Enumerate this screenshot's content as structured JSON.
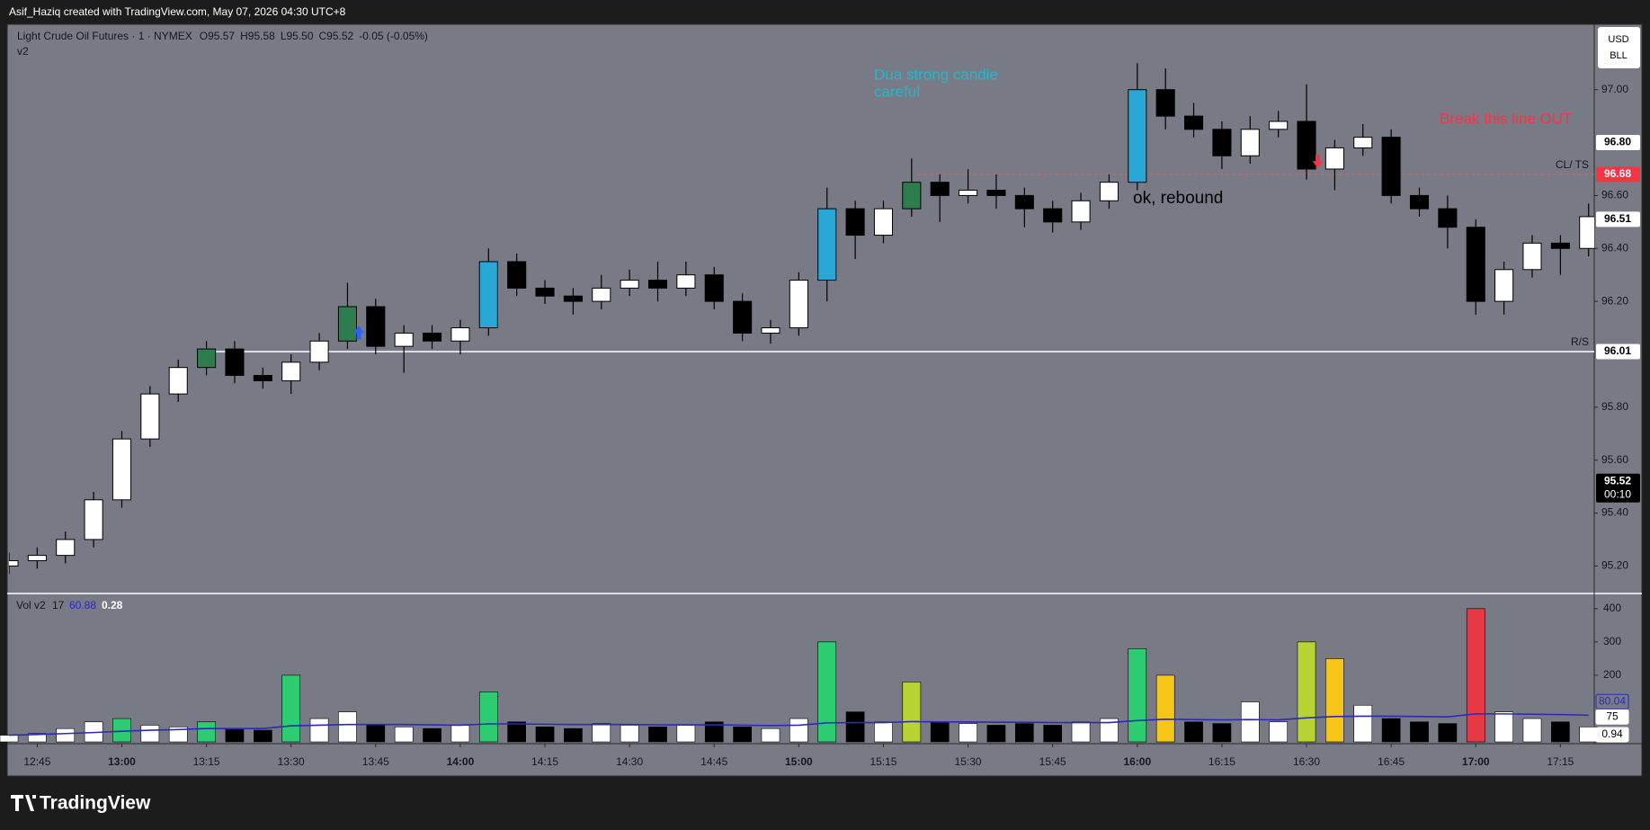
{
  "watermark": "Asif_Haziq created with TradingView.com, May 07, 2026 04:30 UTC+8",
  "brand": "TradingView",
  "currency": [
    "USD",
    "BLL"
  ],
  "chart_data": {
    "type": "candlestick",
    "title": "Light Crude Oil Futures · 1 · NYMEX",
    "ohlc_legend": [
      "O95.57",
      "H95.58",
      "L95.50",
      "C95.52",
      "-0.05 (-0.05%)"
    ],
    "subtitle": "v2",
    "x": [
      "12:40",
      "12:45",
      "12:50",
      "12:55",
      "13:00",
      "13:05",
      "13:10",
      "13:15",
      "13:20",
      "13:25",
      "13:30",
      "13:35",
      "13:40",
      "13:45",
      "13:50",
      "13:55",
      "14:00",
      "14:05",
      "14:10",
      "14:15",
      "14:20",
      "14:25",
      "14:30",
      "14:35",
      "14:40",
      "14:45",
      "14:50",
      "14:55",
      "15:00",
      "15:05",
      "15:10",
      "15:15",
      "15:20",
      "15:25",
      "15:30",
      "15:35",
      "15:40",
      "15:45",
      "15:50",
      "15:55",
      "16:00",
      "16:05",
      "16:10",
      "16:15",
      "16:20",
      "16:25",
      "16:30",
      "16:35",
      "16:40",
      "16:45",
      "16:50",
      "16:55",
      "17:00",
      "17:05",
      "17:10",
      "17:15",
      "17:20"
    ],
    "open": [
      95.2,
      95.22,
      95.24,
      95.3,
      95.45,
      95.68,
      95.85,
      95.95,
      96.02,
      95.92,
      95.9,
      95.97,
      96.05,
      96.18,
      96.03,
      96.08,
      96.05,
      96.1,
      96.35,
      96.25,
      96.22,
      96.2,
      96.25,
      96.28,
      96.25,
      96.3,
      96.2,
      96.08,
      96.1,
      96.28,
      96.55,
      96.45,
      96.55,
      96.65,
      96.6,
      96.62,
      96.6,
      96.55,
      96.5,
      96.58,
      96.65,
      97.0,
      96.9,
      96.85,
      96.75,
      96.85,
      96.88,
      96.7,
      96.78,
      96.82,
      96.6,
      96.55,
      96.48,
      96.2,
      96.32,
      96.42,
      96.4
    ],
    "high": [
      95.25,
      95.27,
      95.33,
      95.48,
      95.71,
      95.88,
      95.98,
      96.05,
      96.05,
      95.95,
      96.0,
      96.08,
      96.27,
      96.21,
      96.11,
      96.11,
      96.13,
      96.4,
      96.38,
      96.28,
      96.25,
      96.3,
      96.32,
      96.35,
      96.35,
      96.33,
      96.23,
      96.13,
      96.31,
      96.63,
      96.58,
      96.58,
      96.74,
      96.68,
      96.7,
      96.68,
      96.63,
      96.58,
      96.61,
      96.68,
      97.1,
      97.08,
      96.95,
      96.88,
      96.9,
      96.92,
      97.02,
      96.81,
      96.87,
      96.85,
      96.63,
      96.6,
      96.51,
      96.35,
      96.45,
      96.45,
      96.57
    ],
    "low": [
      95.17,
      95.19,
      95.21,
      95.27,
      95.42,
      95.65,
      95.82,
      95.92,
      95.89,
      95.87,
      95.85,
      95.94,
      96.02,
      96.0,
      95.93,
      96.02,
      96.0,
      96.07,
      96.22,
      96.19,
      96.15,
      96.17,
      96.22,
      96.2,
      96.22,
      96.17,
      96.05,
      96.04,
      96.07,
      96.2,
      96.36,
      96.42,
      96.52,
      96.5,
      96.57,
      96.55,
      96.48,
      96.46,
      96.47,
      96.55,
      96.62,
      96.85,
      96.82,
      96.7,
      96.72,
      96.82,
      96.66,
      96.62,
      96.75,
      96.57,
      96.52,
      96.4,
      96.15,
      96.15,
      96.29,
      96.3,
      96.37
    ],
    "close": [
      95.22,
      95.24,
      95.3,
      95.45,
      95.68,
      95.85,
      95.95,
      96.02,
      95.92,
      95.9,
      95.97,
      96.05,
      96.18,
      96.03,
      96.08,
      96.05,
      96.1,
      96.35,
      96.25,
      96.22,
      96.2,
      96.25,
      96.28,
      96.25,
      96.3,
      96.2,
      96.08,
      96.1,
      96.28,
      96.55,
      96.45,
      96.55,
      96.65,
      96.6,
      96.62,
      96.6,
      96.55,
      96.5,
      96.58,
      96.65,
      97.0,
      96.9,
      96.85,
      96.75,
      96.85,
      96.88,
      96.7,
      96.78,
      96.82,
      96.6,
      96.55,
      96.48,
      96.2,
      96.32,
      96.42,
      96.4,
      96.52
    ],
    "candle_colors": [
      "#ffffff",
      "#ffffff",
      "#ffffff",
      "#ffffff",
      "#ffffff",
      "#ffffff",
      "#ffffff",
      "#2e7d4f",
      "#000000",
      "#000000",
      "#ffffff",
      "#ffffff",
      "#2e7d4f",
      "#000000",
      "#ffffff",
      "#000000",
      "#ffffff",
      "#29a8d8",
      "#000000",
      "#000000",
      "#000000",
      "#ffffff",
      "#ffffff",
      "#000000",
      "#ffffff",
      "#000000",
      "#000000",
      "#ffffff",
      "#ffffff",
      "#29a8d8",
      "#000000",
      "#ffffff",
      "#2e7d4f",
      "#000000",
      "#ffffff",
      "#000000",
      "#000000",
      "#000000",
      "#ffffff",
      "#ffffff",
      "#29a8d8",
      "#000000",
      "#000000",
      "#000000",
      "#ffffff",
      "#ffffff",
      "#000000",
      "#ffffff",
      "#ffffff",
      "#000000",
      "#000000",
      "#000000",
      "#000000",
      "#ffffff",
      "#ffffff",
      "#000000",
      "#ffffff"
    ],
    "xlim": [
      "12:40",
      "17:21"
    ],
    "xticks": [
      "12:45",
      "13:00",
      "13:15",
      "13:30",
      "13:45",
      "14:00",
      "14:15",
      "14:30",
      "14:45",
      "15:00",
      "15:15",
      "15:30",
      "15:45",
      "16:00",
      "16:15",
      "16:30",
      "16:45",
      "17:00",
      "17:15"
    ],
    "ylim": [
      95.096,
      97.247
    ],
    "yticks": [
      {
        "value": 95.2,
        "label": "95.20"
      },
      {
        "value": 95.4,
        "label": "95.40"
      },
      {
        "value": 95.6,
        "label": "95.60"
      },
      {
        "value": 95.8,
        "label": "95.80"
      },
      {
        "value": 96.2,
        "label": "96.20"
      },
      {
        "value": 96.4,
        "label": "96.40"
      },
      {
        "value": 96.6,
        "label": "96.60"
      },
      {
        "value": 97,
        "label": "97.00"
      }
    ],
    "price_labels": [
      {
        "value": 96.8,
        "label": "96.80",
        "color": "#ffffff"
      },
      {
        "value": 96.68,
        "color": "#f23645"
      },
      {
        "value": 96.51,
        "color": "#ffffff"
      },
      {
        "value": 96.01,
        "color": "#ffffff"
      },
      {
        "value": 95.52,
        "color": "#000000",
        "countdown": "00:10"
      }
    ],
    "lines": [
      {
        "value": 96.01,
        "label": "R/S",
        "color": "#ffffff",
        "style": "solid",
        "from": "13:14"
      },
      {
        "value": 96.68,
        "label": "CL/ TS",
        "color": "#e06060",
        "style": "dashed",
        "from": "15:21"
      }
    ],
    "markers": [
      {
        "x": "13:42",
        "value": 96.08,
        "direction": "up",
        "color": "#2962ff"
      },
      {
        "x": "16:32",
        "value": 96.73,
        "direction": "down",
        "color": "#f23645"
      }
    ],
    "annotations": [
      {
        "text": "Dua strong candle",
        "color": "#1fb8d0"
      },
      {
        "text": "careful",
        "color": "#1fb8d0"
      },
      {
        "text": "Break this line OUT",
        "color": "#f23645"
      },
      {
        "text": "ok, rebound",
        "color": "#000000"
      }
    ],
    "volume": {
      "title": "Vol v2",
      "length": 17,
      "ma_value": 60.88,
      "last": 0.28,
      "values": [
        20,
        25,
        40,
        60,
        70,
        50,
        45,
        60,
        40,
        35,
        200,
        70,
        90,
        50,
        45,
        40,
        50,
        150,
        60,
        45,
        40,
        55,
        50,
        45,
        50,
        60,
        45,
        40,
        70,
        300,
        90,
        60,
        180,
        60,
        55,
        50,
        55,
        50,
        60,
        70,
        280,
        200,
        60,
        55,
        120,
        60,
        300,
        250,
        110,
        70,
        60,
        55,
        400,
        90,
        70,
        60,
        45
      ],
      "colors": [
        "#ffffff",
        "#ffffff",
        "#ffffff",
        "#ffffff",
        "#2ecc71",
        "#ffffff",
        "#ffffff",
        "#2ecc71",
        "#000000",
        "#000000",
        "#2ecc71",
        "#ffffff",
        "#ffffff",
        "#000000",
        "#ffffff",
        "#000000",
        "#ffffff",
        "#2ecc71",
        "#000000",
        "#000000",
        "#000000",
        "#ffffff",
        "#ffffff",
        "#000000",
        "#ffffff",
        "#000000",
        "#000000",
        "#ffffff",
        "#ffffff",
        "#2ecc71",
        "#000000",
        "#ffffff",
        "#b7d434",
        "#000000",
        "#ffffff",
        "#000000",
        "#000000",
        "#000000",
        "#ffffff",
        "#ffffff",
        "#2ecc71",
        "#f5c518",
        "#000000",
        "#000000",
        "#ffffff",
        "#ffffff",
        "#b7d434",
        "#f5c518",
        "#ffffff",
        "#000000",
        "#000000",
        "#000000",
        "#e53945",
        "#ffffff",
        "#ffffff",
        "#000000",
        "#ffffff"
      ],
      "ma": [
        20,
        22,
        25,
        28,
        32,
        35,
        37,
        40,
        40,
        40,
        48,
        50,
        52,
        52,
        52,
        51,
        50,
        54,
        54,
        53,
        52,
        52,
        52,
        51,
        51,
        51,
        50,
        49,
        50,
        57,
        58,
        58,
        61,
        60,
        60,
        59,
        59,
        58,
        58,
        58,
        64,
        68,
        67,
        66,
        67,
        66,
        72,
        76,
        77,
        77,
        76,
        75,
        84,
        84,
        83,
        82,
        80
      ],
      "ma_color": "#2a2ab8",
      "ylim": [
        0,
        440
      ],
      "yticks": [
        200,
        300,
        400
      ],
      "labels": [
        {
          "value": 80.04,
          "color": "#2a2ab8"
        },
        {
          "value": 75,
          "color": "#ffffff"
        },
        {
          "value": 0.94,
          "color": "#ffffff"
        }
      ]
    }
  }
}
